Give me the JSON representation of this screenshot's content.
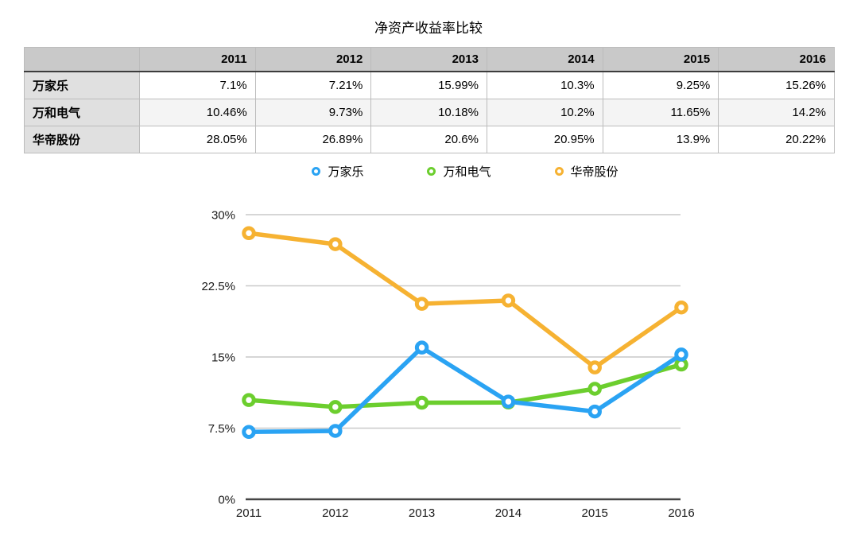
{
  "title": "净资产收益率比较",
  "table": {
    "corner_label": "",
    "years": [
      "2011",
      "2012",
      "2013",
      "2014",
      "2015",
      "2016"
    ],
    "rows": [
      {
        "label": "万家乐",
        "values": [
          "7.1%",
          "7.21%",
          "15.99%",
          "10.3%",
          "9.25%",
          "15.26%"
        ]
      },
      {
        "label": "万和电气",
        "values": [
          "10.46%",
          "9.73%",
          "10.18%",
          "10.2%",
          "11.65%",
          "14.2%"
        ]
      },
      {
        "label": "华帝股份",
        "values": [
          "28.05%",
          "26.89%",
          "20.6%",
          "20.95%",
          "13.9%",
          "20.22%"
        ]
      }
    ]
  },
  "legend": [
    {
      "label": "万家乐",
      "color": "#2AA3F3"
    },
    {
      "label": "万和电气",
      "color": "#6CCE2E"
    },
    {
      "label": "华帝股份",
      "color": "#F6B232"
    }
  ],
  "chart_data": {
    "type": "line",
    "title": "净资产收益率比较",
    "categories": [
      "2011",
      "2012",
      "2013",
      "2014",
      "2015",
      "2016"
    ],
    "series": [
      {
        "name": "万家乐",
        "color": "#2AA3F3",
        "values": [
          7.1,
          7.21,
          15.99,
          10.3,
          9.25,
          15.26
        ]
      },
      {
        "name": "万和电气",
        "color": "#6CCE2E",
        "values": [
          10.46,
          9.73,
          10.18,
          10.2,
          11.65,
          14.2
        ]
      },
      {
        "name": "华帝股份",
        "color": "#F6B232",
        "values": [
          28.05,
          26.89,
          20.6,
          20.95,
          13.9,
          20.22
        ]
      }
    ],
    "ylim": [
      0,
      30
    ],
    "yticks": [
      {
        "value": 0,
        "text": "0%"
      },
      {
        "value": 7.5,
        "text": "7.5%"
      },
      {
        "value": 15,
        "text": "15%"
      },
      {
        "value": 22.5,
        "text": "22.5%"
      },
      {
        "value": 30,
        "text": "30%"
      }
    ],
    "xlabel": "",
    "ylabel": "",
    "grid": true,
    "legend_position": "top"
  },
  "colors": {
    "gridline": "#c9c9c9",
    "axis_line": "#454545",
    "tick_label": "#1a1a1a",
    "header_bg": "#c9c9c9",
    "row_header_bg": "#e0e0e0",
    "alt_row_bg": "#f4f4f4",
    "table_border": "#bcbcbc"
  }
}
